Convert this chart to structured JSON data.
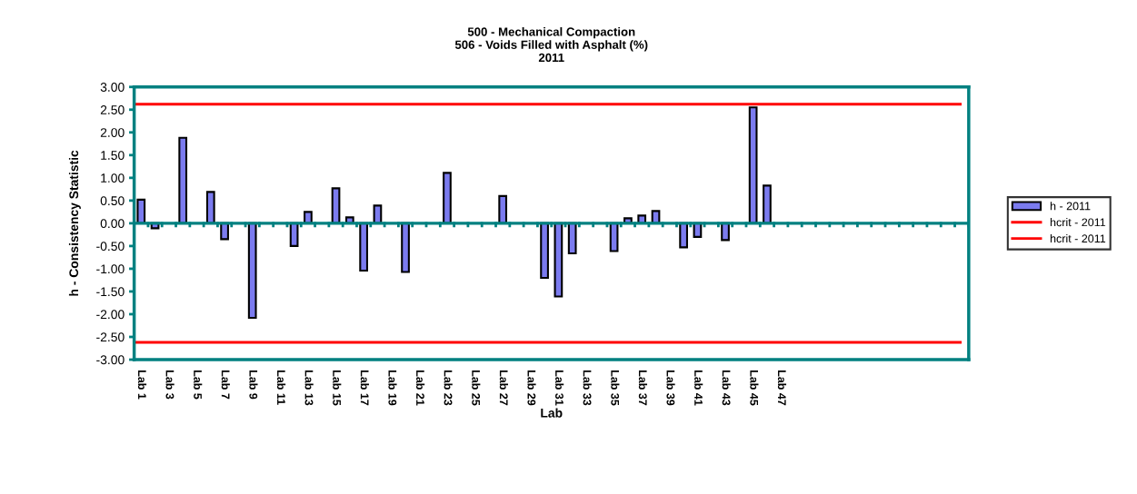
{
  "chart_data": {
    "type": "bar",
    "title": "500 - Mechanical Compaction\n506 - Voids Filled with Asphalt (%)\n2011",
    "xlabel": "Lab",
    "ylabel": "h - Consistency Statistic",
    "categories": [
      "Lab 1",
      null,
      "Lab 3",
      null,
      "Lab 5",
      null,
      "Lab 7",
      null,
      "Lab 9",
      null,
      "Lab 11",
      null,
      "Lab 13",
      null,
      "Lab 15",
      null,
      "Lab 17",
      null,
      "Lab 19",
      null,
      "Lab 21",
      null,
      "Lab 23",
      null,
      "Lab 25",
      null,
      "Lab 27",
      null,
      "Lab 29",
      null,
      "Lab 31",
      null,
      "Lab 33",
      null,
      "Lab 35",
      null,
      "Lab 37",
      null,
      "Lab 39",
      null,
      "Lab 41",
      null,
      "Lab 43",
      null,
      "Lab 45",
      null,
      "Lab 47",
      null,
      null,
      null,
      null,
      null,
      null,
      null,
      null,
      null,
      null,
      null,
      null,
      null
    ],
    "series": [
      {
        "name": "h - 2011",
        "color": "#7b7bef",
        "values": [
          0.52,
          -0.11,
          null,
          1.88,
          null,
          0.69,
          -0.35,
          null,
          -2.08,
          null,
          null,
          -0.5,
          0.25,
          null,
          0.77,
          0.13,
          -1.04,
          0.39,
          null,
          -1.07,
          null,
          null,
          1.11,
          null,
          null,
          null,
          0.6,
          null,
          null,
          -1.2,
          -1.61,
          -0.66,
          null,
          null,
          -0.61,
          0.11,
          0.17,
          0.27,
          null,
          -0.53,
          -0.3,
          null,
          -0.37,
          null,
          2.55,
          0.83,
          null,
          null,
          null,
          null,
          null,
          null,
          null,
          null,
          null,
          null,
          null,
          null,
          null,
          null
        ]
      }
    ],
    "ref_lines": [
      {
        "axis": "y",
        "value": 2.62,
        "label": "hcrit - 2011",
        "color": "#ff0000"
      },
      {
        "axis": "y",
        "value": -2.62,
        "label": "hcrit - 2011",
        "color": "#ff0000"
      },
      {
        "axis": "y",
        "value": 0,
        "color": "#008080"
      }
    ],
    "ylim": [
      -3,
      3
    ],
    "yticks": [
      {
        "value": -3,
        "label": "-3.00"
      },
      {
        "value": -2.5,
        "label": "-2.50"
      },
      {
        "value": -2,
        "label": "-2.00"
      },
      {
        "value": -1.5,
        "label": "-1.50"
      },
      {
        "value": -1,
        "label": "-1.00"
      },
      {
        "value": -0.5,
        "label": "-0.50"
      },
      {
        "value": 0,
        "label": "0.00"
      },
      {
        "value": 0.5,
        "label": "0.50"
      },
      {
        "value": 1,
        "label": "1.00"
      },
      {
        "value": 1.5,
        "label": "1.50"
      },
      {
        "value": 2,
        "label": "2.00"
      },
      {
        "value": 2.5,
        "label": "2.50"
      },
      {
        "value": 3,
        "label": "3.00"
      }
    ],
    "grid": false,
    "legend": "right"
  }
}
